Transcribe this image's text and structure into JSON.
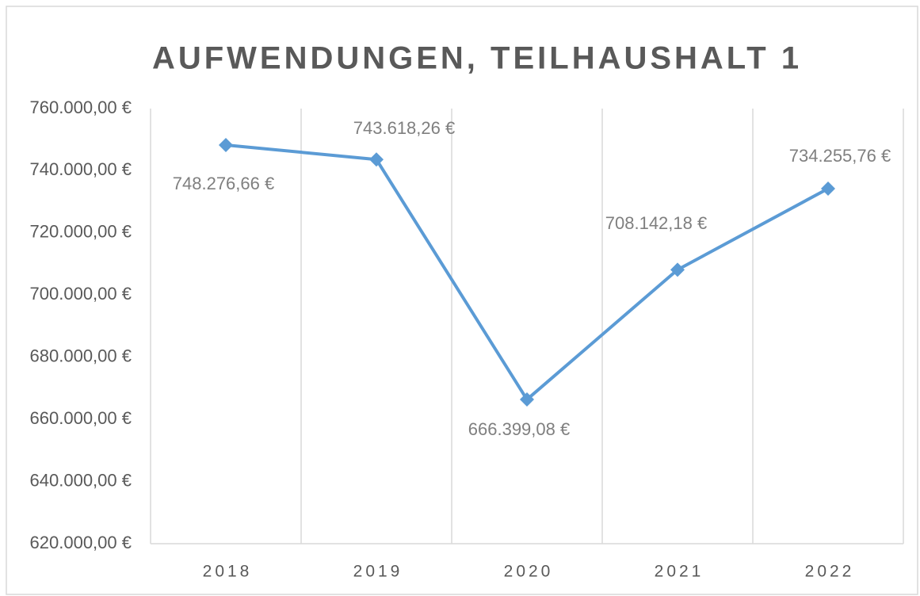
{
  "chart_data": {
    "type": "line",
    "title": "AUFWENDUNGEN, TEILHAUSHALT 1",
    "categories": [
      "2018",
      "2019",
      "2020",
      "2021",
      "2022"
    ],
    "series": [
      {
        "name": "Aufwendungen",
        "color": "#5b9bd5",
        "values": [
          748276.66,
          743618.26,
          666399.08,
          708142.18,
          734255.76
        ],
        "value_labels": [
          "748.276,66 €",
          "743.618,26 €",
          "666.399,08 €",
          "708.142,18 €",
          "734.255,76 €"
        ]
      }
    ],
    "ylim": [
      620000,
      760000
    ],
    "yticks": [
      {
        "value": 620000,
        "label": "620.000,00 €"
      },
      {
        "value": 640000,
        "label": "640.000,00 €"
      },
      {
        "value": 660000,
        "label": "660.000,00 €"
      },
      {
        "value": 680000,
        "label": "680.000,00 €"
      },
      {
        "value": 700000,
        "label": "700.000,00 €"
      },
      {
        "value": 720000,
        "label": "720.000,00 €"
      },
      {
        "value": 740000,
        "label": "740.000,00 €"
      },
      {
        "value": 760000,
        "label": "760.000,00 €"
      }
    ],
    "grid": "x"
  }
}
